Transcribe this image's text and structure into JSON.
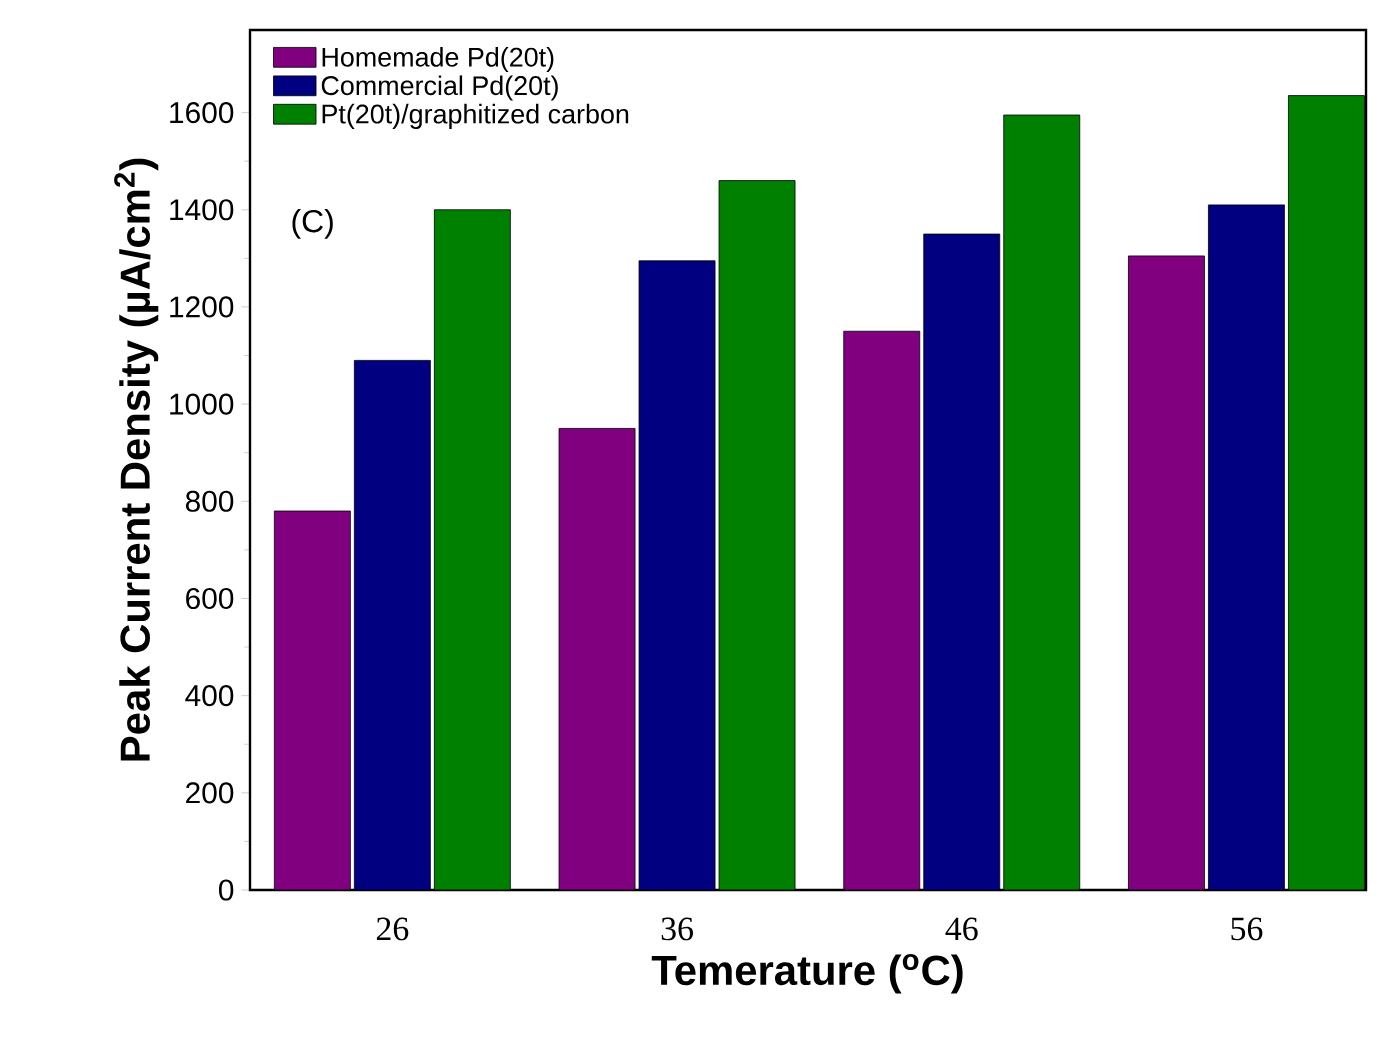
{
  "chart_data": {
    "type": "bar",
    "xlabel": "Temerature ($^{o}$C)",
    "ylabel": "Peak Current Density (µA/cm$^{2}$)",
    "categories": [
      "26",
      "36",
      "46",
      "56"
    ],
    "series": [
      {
        "name": "Homemade Pd(20t)",
        "color": "#800080",
        "values": [
          780,
          950,
          1150,
          1305
        ]
      },
      {
        "name": "Commercial Pd(20t)",
        "color": "#000080",
        "values": [
          1090,
          1295,
          1350,
          1410
        ]
      },
      {
        "name": "Pt(20t)/graphitized carbon",
        "color": "#008000",
        "values": [
          1400,
          1460,
          1595,
          1635
        ]
      }
    ],
    "ylim": [
      0,
      1770
    ],
    "yticks": [
      0,
      200,
      400,
      600,
      800,
      1000,
      1200,
      1400,
      1600
    ],
    "legend": "top left",
    "annotations": [
      "(C)"
    ]
  }
}
